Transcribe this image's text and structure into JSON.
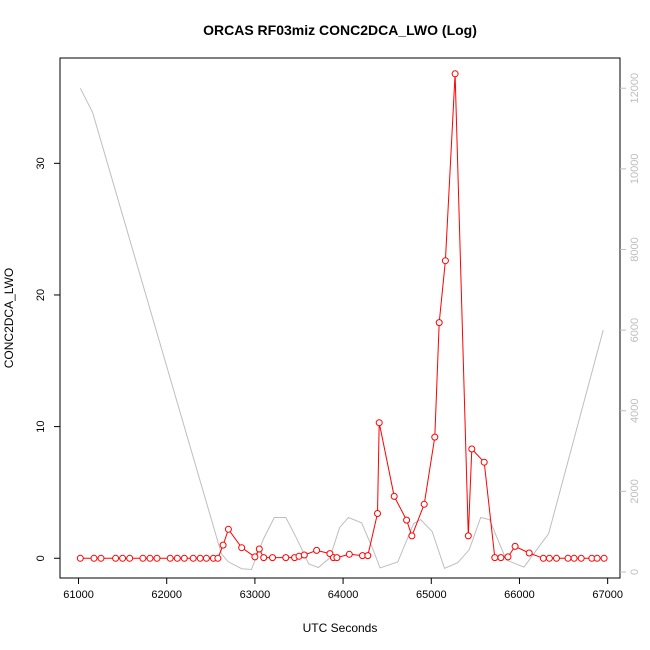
{
  "chart_data": {
    "type": "line",
    "title": "ORCAS RF03miz CONC2DCA_LWO (Log)",
    "xlabel": "UTC Seconds",
    "ylabel": "CONC2DCA_LWO",
    "xlim": [
      60790,
      67140
    ],
    "ylim": [
      -1.5,
      38
    ],
    "y2lim": [
      -150,
      12750
    ],
    "xticks": [
      61000,
      62000,
      63000,
      64000,
      65000,
      66000,
      67000
    ],
    "yticks": [
      0,
      10,
      20,
      30
    ],
    "y2ticks": [
      0,
      2000,
      4000,
      6000,
      8000,
      10000,
      12000
    ],
    "colors": {
      "series": "#ff0000",
      "altitude": "#bebebe",
      "axis": "#000000"
    },
    "series": [
      {
        "marker": "open-circle",
        "axis": "left",
        "x": [
          61020,
          61175,
          61255,
          61420,
          61500,
          61580,
          61730,
          61810,
          61890,
          62040,
          62120,
          62200,
          62300,
          62380,
          62450,
          62530,
          62580,
          62640,
          62700,
          62850,
          63000,
          63050,
          63100,
          63200,
          63350,
          63450,
          63500,
          63560,
          63700,
          63850,
          63890,
          63930,
          64070,
          64220,
          64280,
          64390,
          64410,
          64580,
          64720,
          64780,
          64920,
          65040,
          65090,
          65160,
          65270,
          65420,
          65460,
          65600,
          65720,
          65790,
          65870,
          65950,
          66110,
          66270,
          66340,
          66420,
          66550,
          66620,
          66700,
          66820,
          66880,
          66960
        ],
        "values": [
          0,
          0,
          0,
          0,
          0,
          0,
          0,
          0,
          0,
          0,
          0,
          0,
          0,
          0,
          0,
          0,
          0,
          1.0,
          2.2,
          0.8,
          0.1,
          0.7,
          0.05,
          0.05,
          0.05,
          0.05,
          0.15,
          0.25,
          0.6,
          0.35,
          0.05,
          0.05,
          0.3,
          0.2,
          0.2,
          3.4,
          10.3,
          4.7,
          2.9,
          1.7,
          4.1,
          9.2,
          17.9,
          22.6,
          36.8,
          1.7,
          8.3,
          7.3,
          0.05,
          0.05,
          0.1,
          0.9,
          0.4,
          0,
          0,
          0,
          0,
          0,
          0,
          0,
          0,
          0
        ]
      },
      {
        "axis": "right",
        "x": [
          61020,
          61160,
          62620,
          62700,
          62850,
          62960,
          63100,
          63220,
          63350,
          63470,
          63610,
          63720,
          63850,
          63960,
          64060,
          64210,
          64340,
          64420,
          64620,
          64800,
          64880,
          65010,
          65150,
          65300,
          65430,
          65560,
          65660,
          65850,
          66050,
          66330,
          66950
        ],
        "values": [
          12000,
          11400,
          450,
          250,
          80,
          60,
          830,
          1350,
          1350,
          850,
          200,
          110,
          350,
          1100,
          1350,
          1220,
          550,
          100,
          250,
          1200,
          1300,
          1000,
          90,
          230,
          550,
          1350,
          1300,
          300,
          120,
          950,
          6000
        ]
      }
    ]
  }
}
